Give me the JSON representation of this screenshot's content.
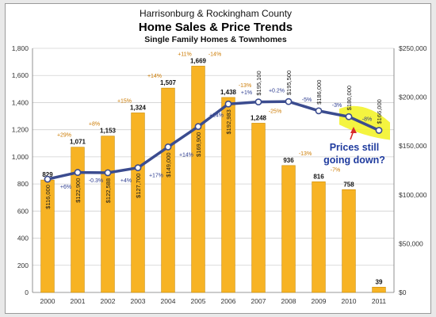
{
  "chart_data": {
    "type": "bar",
    "title_top": "Harrisonburg & Rockingham County",
    "title": "Home Sales & Price Trends",
    "subtitle": "Single Family Homes & Townhomes",
    "categories": [
      "2000",
      "2001",
      "2002",
      "2003",
      "2004",
      "2005",
      "2006",
      "2007",
      "2008",
      "2009",
      "2010",
      "2011"
    ],
    "left_axis": {
      "ylim": [
        0,
        1800
      ],
      "ticks": [
        "0",
        "200",
        "400",
        "600",
        "800",
        "1,000",
        "1,200",
        "1,400",
        "1,600",
        "1,800"
      ]
    },
    "right_axis": {
      "ylim": [
        0,
        250000
      ],
      "ticks": [
        "$0",
        "$50,000",
        "$100,000",
        "$150,000",
        "$200,000",
        "$250,000"
      ]
    },
    "series": [
      {
        "kind": "bar",
        "color": "#f7b324",
        "values": [
          829,
          1071,
          1153,
          1324,
          1507,
          1669,
          1438,
          1248,
          936,
          816,
          758,
          39
        ],
        "labels": [
          "829",
          "1,071",
          "1,153",
          "1,324",
          "1,507",
          "1,669",
          "1,438",
          "1,248",
          "936",
          "816",
          "758",
          "39"
        ],
        "pct_labels": [
          "",
          "+29%",
          "+8%",
          "+15%",
          "+14%",
          "+11%",
          "-14%",
          "-13%",
          "-25%",
          "-13%",
          "-7%",
          ""
        ]
      },
      {
        "kind": "line",
        "axis": "right",
        "color": "#3b4c8f",
        "values": [
          116000,
          122900,
          122588,
          127700,
          149000,
          169900,
          192983,
          195100,
          195500,
          186000,
          180000,
          166000
        ],
        "labels": [
          "$116,000",
          "$122,900",
          "$122,588",
          "$127,700",
          "$149,000",
          "$169,900",
          "$192,983",
          "$195,100",
          "$195,500",
          "$186,000",
          "$180,000",
          "$166,000"
        ],
        "pct_labels": [
          "+6%",
          "-0.3%",
          "+4%",
          "+17%",
          "+14%",
          "+14%",
          "+1%",
          "+0.2%",
          "-5%",
          "-3%",
          "-8%"
        ]
      }
    ],
    "annotation": {
      "lines": [
        "Prices still",
        "going down?"
      ],
      "highlight_color": "#f2f21e",
      "arrow_color": "#d82b2b"
    },
    "grid": true
  }
}
